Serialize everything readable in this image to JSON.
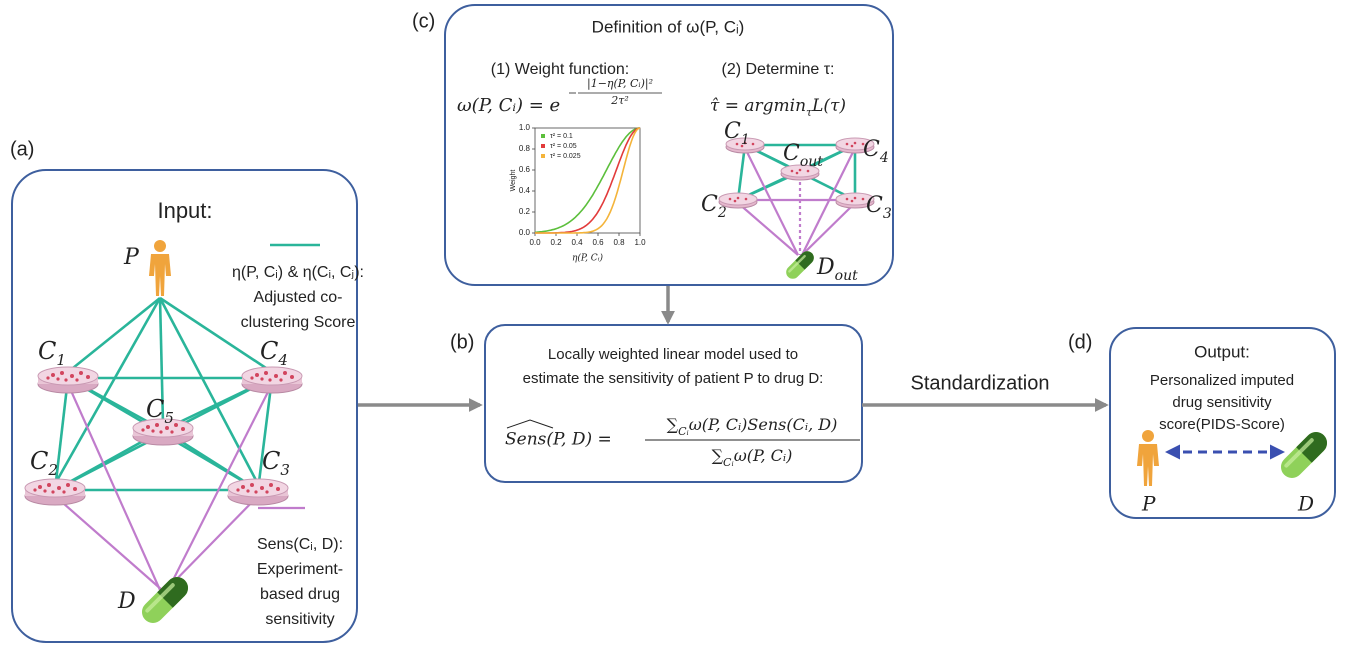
{
  "panels": {
    "a": "(a)",
    "b": "(b)",
    "c": "(c)",
    "d": "(d)"
  },
  "input": {
    "title": "Input:",
    "patient": "P",
    "drug": "D",
    "cells": [
      {
        "label": "C",
        "sub": "1"
      },
      {
        "label": "C",
        "sub": "4"
      },
      {
        "label": "C",
        "sub": "5"
      },
      {
        "label": "C",
        "sub": "2"
      },
      {
        "label": "C",
        "sub": "3"
      }
    ],
    "eta_legend": [
      "η(P, Cᵢ) & η(Cᵢ, Cⱼ):",
      "Adjusted co-",
      "clustering Score"
    ],
    "sens_legend": [
      "Sens(Cᵢ, D):",
      "Experiment-",
      "based drug",
      "sensitivity"
    ]
  },
  "definition": {
    "title": "Definition of ω(P, Cᵢ)",
    "step1": "(1) Weight function:",
    "step2": "(2)   Determine τ:",
    "weight_formula": {
      "lhs": "ω(P, Cᵢ) = e",
      "exp_num": "|1−η(P, Cᵢ)|²",
      "exp_den": "2τ²"
    },
    "tau_formula": {
      "lhs": "τ̂ = argmin",
      "sub": "τ",
      "rhs": "L(τ)"
    },
    "plot": {
      "x_label": "η(P, Cᵢ)",
      "y_label": "Weight",
      "xlim": [
        0,
        1
      ],
      "ylim": [
        0,
        1
      ],
      "xticks": [
        {
          "value": 0,
          "label": "0.0"
        },
        {
          "value": 0.2,
          "label": "0.2"
        },
        {
          "value": 0.4,
          "label": "0.4"
        },
        {
          "value": 0.6,
          "label": "0.6"
        },
        {
          "value": 0.8,
          "label": "0.8"
        },
        {
          "value": 1,
          "label": "1.0"
        }
      ],
      "yticks": [
        {
          "value": 0,
          "label": "0.0"
        },
        {
          "value": 0.2,
          "label": "0.2"
        },
        {
          "value": 0.4,
          "label": "0.4"
        },
        {
          "value": 0.6,
          "label": "0.6"
        },
        {
          "value": 0.8,
          "label": "0.8"
        },
        {
          "value": 1,
          "label": "1.0"
        }
      ],
      "series": [
        {
          "name": "τ² = 0.1",
          "tau2": 0.1,
          "color": "#5cbf3c"
        },
        {
          "name": "τ² = 0.05",
          "tau2": 0.05,
          "color": "#e23b3b"
        },
        {
          "name": "τ² = 0.025",
          "tau2": 0.025,
          "color": "#f4b43a"
        }
      ]
    },
    "cells": [
      {
        "label": "C",
        "sub": "1"
      },
      {
        "label": "C",
        "sub": "4"
      },
      {
        "label": "C",
        "sub": "out"
      },
      {
        "label": "C",
        "sub": "2"
      },
      {
        "label": "C",
        "sub": "3"
      }
    ],
    "drug": {
      "label": "D",
      "sub": "out"
    }
  },
  "model": {
    "lines": [
      "Locally weighted linear model used to",
      "estimate the sensitivity of patient P to drug D:"
    ],
    "lhs": "Sens(P, D) =",
    "num": {
      "sum": "∑",
      "sub": "Cᵢ",
      "body": "ω(P, Cᵢ)Sens(Cᵢ, D)"
    },
    "den": {
      "sum": "∑",
      "sub": "Cᵢ",
      "body": "ω(P, Cᵢ)"
    }
  },
  "standardization": "Standardization",
  "output": {
    "title": "Output:",
    "lines": [
      "Personalized imputed",
      "drug sensitivity",
      "score(PIDS-Score)"
    ],
    "patient": "P",
    "drug": "D"
  }
}
